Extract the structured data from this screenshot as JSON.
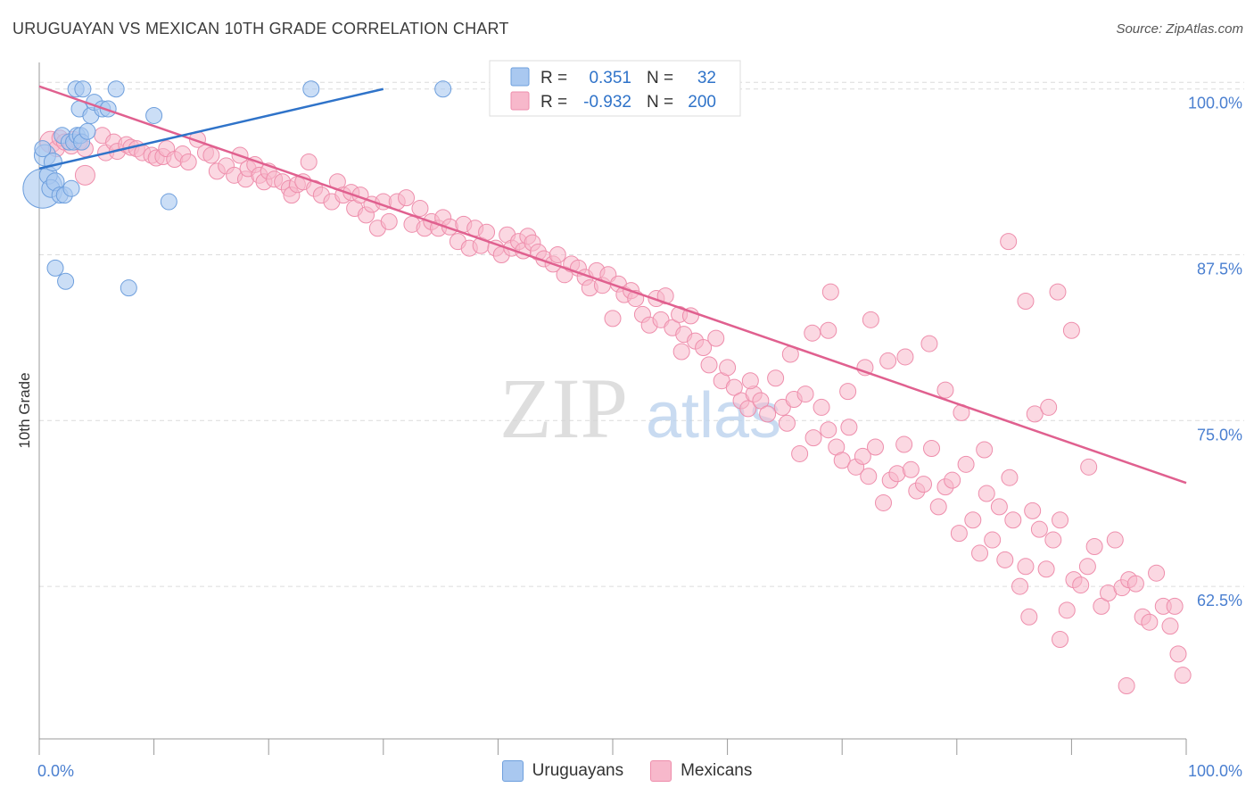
{
  "title": "URUGUAYAN VS MEXICAN 10TH GRADE CORRELATION CHART",
  "source": "Source: ZipAtlas.com",
  "watermark": {
    "zip": "ZIP",
    "atlas": "atlas"
  },
  "colors": {
    "uru_fill": "#a9c8f0",
    "uru_stroke": "#6e9fdd",
    "uru_line": "#2f73c9",
    "mex_fill": "#f7b8cb",
    "mex_stroke": "#ee8eac",
    "mex_line": "#e0608f",
    "tick_label": "#4a7fd0",
    "grid": "#dcdcdc"
  },
  "legend": {
    "rows": [
      {
        "r_label": "R =",
        "r_value": "0.351",
        "n_label": "N =",
        "n_value": "32"
      },
      {
        "r_label": "R =",
        "r_value": "-0.932",
        "n_label": "N =",
        "n_value": "200"
      }
    ]
  },
  "bottom_legend": {
    "uru": "Uruguayans",
    "mex": "Mexicans"
  },
  "chart_data": {
    "type": "scatter",
    "title": "URUGUAYAN VS MEXICAN 10TH GRADE CORRELATION CHART",
    "xlabel": "",
    "ylabel": "10th Grade",
    "xlim": [
      0,
      100
    ],
    "ylim": [
      51,
      102
    ],
    "x_tick_labels": [
      "0.0%",
      "100.0%"
    ],
    "y_ticks": [
      62.5,
      75.0,
      87.5,
      100.0
    ],
    "y_tick_labels": [
      "62.5%",
      "75.0%",
      "87.5%",
      "100.0%"
    ],
    "grid": true,
    "legend_position": "top-center",
    "series": [
      {
        "name": "Uruguayans",
        "r": 0.351,
        "n": 32,
        "trend": {
          "x": [
            0,
            30
          ],
          "y": [
            94.0,
            100.0
          ]
        },
        "points": [
          [
            0.3,
            92.5,
            22
          ],
          [
            0.5,
            95.0,
            12
          ],
          [
            0.8,
            93.5,
            10
          ],
          [
            1.0,
            92.5,
            10
          ],
          [
            1.2,
            94.5,
            10
          ],
          [
            1.4,
            93.0,
            10
          ],
          [
            1.8,
            92.0,
            9
          ],
          [
            2.0,
            96.5,
            9
          ],
          [
            2.2,
            92.0,
            9
          ],
          [
            2.6,
            96.0,
            9
          ],
          [
            2.8,
            92.5,
            9
          ],
          [
            3.0,
            96.0,
            9
          ],
          [
            3.3,
            96.5,
            9
          ],
          [
            3.2,
            100.0,
            9
          ],
          [
            3.5,
            98.5,
            9
          ],
          [
            3.6,
            96.5,
            9
          ],
          [
            3.7,
            96.0,
            9
          ],
          [
            3.8,
            100.0,
            9
          ],
          [
            4.2,
            96.8,
            9
          ],
          [
            4.5,
            98.0,
            9
          ],
          [
            4.8,
            99.0,
            9
          ],
          [
            5.5,
            98.5,
            9
          ],
          [
            6.0,
            98.5,
            9
          ],
          [
            6.7,
            100.0,
            9
          ],
          [
            1.4,
            86.5,
            9
          ],
          [
            2.3,
            85.5,
            9
          ],
          [
            7.8,
            85.0,
            9
          ],
          [
            10.0,
            98.0,
            9
          ],
          [
            11.3,
            91.5,
            9
          ],
          [
            23.7,
            100.0,
            9
          ],
          [
            35.2,
            100.0,
            9
          ],
          [
            0.3,
            95.5,
            9
          ]
        ]
      },
      {
        "name": "Mexicans",
        "r": -0.932,
        "n": 200,
        "trend": {
          "x": [
            0,
            100
          ],
          "y": [
            100.2,
            70.3
          ]
        },
        "points": [
          [
            1.0,
            96.0,
            12
          ],
          [
            1.5,
            95.5,
            9
          ],
          [
            1.8,
            96.3,
            9
          ],
          [
            2.2,
            96.0,
            9
          ],
          [
            2.8,
            95.7,
            9
          ],
          [
            3.0,
            96.2,
            9
          ],
          [
            3.5,
            96.0,
            9
          ],
          [
            4.0,
            95.5,
            9
          ],
          [
            5.5,
            96.5,
            9
          ],
          [
            5.8,
            95.2,
            9
          ],
          [
            4.0,
            93.5,
            11
          ],
          [
            6.5,
            96.0,
            9
          ],
          [
            6.8,
            95.3,
            9
          ],
          [
            7.6,
            95.8,
            9
          ],
          [
            8.0,
            95.6,
            9
          ],
          [
            8.5,
            95.5,
            9
          ],
          [
            9.0,
            95.2,
            9
          ],
          [
            9.8,
            95.0,
            9
          ],
          [
            10.2,
            94.8,
            9
          ],
          [
            10.8,
            94.9,
            9
          ],
          [
            11.1,
            95.5,
            9
          ],
          [
            11.8,
            94.7,
            9
          ],
          [
            12.5,
            95.1,
            9
          ],
          [
            13.0,
            94.5,
            9
          ],
          [
            13.8,
            96.2,
            9
          ],
          [
            14.5,
            95.2,
            9
          ],
          [
            15.0,
            95.0,
            9
          ],
          [
            15.5,
            93.8,
            9
          ],
          [
            16.3,
            94.2,
            9
          ],
          [
            17.0,
            93.5,
            9
          ],
          [
            17.5,
            95.0,
            9
          ],
          [
            18.0,
            93.2,
            9
          ],
          [
            18.2,
            94.0,
            9
          ],
          [
            18.8,
            94.3,
            9
          ],
          [
            19.2,
            93.5,
            9
          ],
          [
            19.6,
            93.0,
            9
          ],
          [
            20.0,
            93.8,
            9
          ],
          [
            20.5,
            93.2,
            9
          ],
          [
            21.2,
            93.0,
            9
          ],
          [
            21.8,
            92.5,
            9
          ],
          [
            22.0,
            92.0,
            9
          ],
          [
            22.5,
            92.8,
            9
          ],
          [
            23.0,
            93.0,
            9
          ],
          [
            23.5,
            94.5,
            9
          ],
          [
            24.0,
            92.5,
            9
          ],
          [
            24.6,
            92.0,
            9
          ],
          [
            25.5,
            91.5,
            9
          ],
          [
            26.0,
            93.0,
            9
          ],
          [
            26.5,
            92.0,
            9
          ],
          [
            27.2,
            92.2,
            9
          ],
          [
            27.5,
            91.0,
            9
          ],
          [
            28.0,
            92.0,
            9
          ],
          [
            28.5,
            90.5,
            9
          ],
          [
            29.0,
            91.3,
            9
          ],
          [
            29.5,
            89.5,
            9
          ],
          [
            30.0,
            91.5,
            9
          ],
          [
            30.5,
            90.0,
            9
          ],
          [
            31.2,
            91.5,
            9
          ],
          [
            32.0,
            91.8,
            9
          ],
          [
            32.5,
            89.8,
            9
          ],
          [
            33.2,
            91.0,
            9
          ],
          [
            33.6,
            89.5,
            9
          ],
          [
            34.2,
            90.0,
            9
          ],
          [
            34.8,
            89.5,
            9
          ],
          [
            35.2,
            90.3,
            9
          ],
          [
            35.8,
            89.6,
            9
          ],
          [
            36.5,
            88.5,
            9
          ],
          [
            37.0,
            89.8,
            9
          ],
          [
            37.5,
            88.0,
            9
          ],
          [
            38.0,
            89.5,
            9
          ],
          [
            38.5,
            88.2,
            9
          ],
          [
            39.0,
            89.2,
            9
          ],
          [
            39.8,
            88.0,
            9
          ],
          [
            40.3,
            87.5,
            9
          ],
          [
            40.8,
            89.0,
            9
          ],
          [
            41.2,
            88.0,
            9
          ],
          [
            41.8,
            88.5,
            9
          ],
          [
            42.2,
            87.8,
            9
          ],
          [
            42.6,
            88.9,
            9
          ],
          [
            43.0,
            88.4,
            9
          ],
          [
            43.5,
            87.7,
            9
          ],
          [
            44.0,
            87.2,
            9
          ],
          [
            44.8,
            86.8,
            9
          ],
          [
            45.2,
            87.5,
            9
          ],
          [
            45.8,
            86.0,
            9
          ],
          [
            46.4,
            86.8,
            9
          ],
          [
            47.0,
            86.5,
            9
          ],
          [
            47.6,
            85.8,
            9
          ],
          [
            48.0,
            85.0,
            9
          ],
          [
            48.6,
            86.3,
            9
          ],
          [
            49.1,
            85.2,
            9
          ],
          [
            49.6,
            86.0,
            9
          ],
          [
            50.0,
            82.7,
            9
          ],
          [
            50.5,
            85.3,
            9
          ],
          [
            51.0,
            84.5,
            9
          ],
          [
            51.6,
            84.8,
            9
          ],
          [
            52.0,
            84.2,
            9
          ],
          [
            52.6,
            83.0,
            9
          ],
          [
            53.2,
            82.2,
            9
          ],
          [
            53.8,
            84.2,
            9
          ],
          [
            54.2,
            82.6,
            9
          ],
          [
            54.6,
            84.4,
            9
          ],
          [
            55.2,
            82.0,
            9
          ],
          [
            55.8,
            83.0,
            9
          ],
          [
            56.2,
            81.5,
            9
          ],
          [
            56.8,
            82.9,
            9
          ],
          [
            57.2,
            81.0,
            9
          ],
          [
            57.9,
            80.5,
            9
          ],
          [
            58.4,
            79.2,
            9
          ],
          [
            59.0,
            81.2,
            9
          ],
          [
            59.5,
            78.0,
            9
          ],
          [
            60.0,
            79.0,
            9
          ],
          [
            60.6,
            77.5,
            9
          ],
          [
            61.2,
            76.5,
            9
          ],
          [
            61.8,
            75.9,
            9
          ],
          [
            62.3,
            77.0,
            9
          ],
          [
            62.9,
            76.5,
            9
          ],
          [
            63.5,
            75.5,
            9
          ],
          [
            64.2,
            78.2,
            9
          ],
          [
            64.8,
            76.0,
            9
          ],
          [
            65.2,
            74.8,
            9
          ],
          [
            65.8,
            76.6,
            9
          ],
          [
            66.3,
            72.5,
            9
          ],
          [
            66.8,
            77.0,
            9
          ],
          [
            67.5,
            73.7,
            9
          ],
          [
            68.2,
            76.0,
            9
          ],
          [
            68.8,
            74.3,
            9
          ],
          [
            69.5,
            73.0,
            9
          ],
          [
            70.0,
            72.0,
            9
          ],
          [
            70.6,
            74.5,
            9
          ],
          [
            71.2,
            71.5,
            9
          ],
          [
            71.8,
            72.3,
            9
          ],
          [
            72.3,
            70.8,
            9
          ],
          [
            72.9,
            73.0,
            9
          ],
          [
            73.6,
            68.8,
            9
          ],
          [
            74.2,
            70.5,
            9
          ],
          [
            74.8,
            71.0,
            9
          ],
          [
            75.4,
            73.2,
            9
          ],
          [
            76.0,
            71.3,
            9
          ],
          [
            76.5,
            69.7,
            9
          ],
          [
            77.1,
            70.2,
            9
          ],
          [
            77.8,
            72.9,
            9
          ],
          [
            78.4,
            68.5,
            9
          ],
          [
            79.0,
            70.0,
            9
          ],
          [
            79.6,
            70.5,
            9
          ],
          [
            80.2,
            66.5,
            9
          ],
          [
            80.8,
            71.7,
            9
          ],
          [
            81.4,
            67.5,
            9
          ],
          [
            82.0,
            65.0,
            9
          ],
          [
            82.6,
            69.5,
            9
          ],
          [
            83.1,
            66.0,
            9
          ],
          [
            83.7,
            68.5,
            9
          ],
          [
            84.2,
            64.5,
            9
          ],
          [
            84.9,
            67.5,
            9
          ],
          [
            85.5,
            62.5,
            9
          ],
          [
            86.0,
            64.0,
            9
          ],
          [
            86.6,
            68.2,
            9
          ],
          [
            87.2,
            66.8,
            9
          ],
          [
            87.8,
            63.8,
            9
          ],
          [
            88.4,
            66.0,
            9
          ],
          [
            89.0,
            67.5,
            9
          ],
          [
            89.6,
            60.7,
            9
          ],
          [
            90.2,
            63.0,
            9
          ],
          [
            90.8,
            62.6,
            9
          ],
          [
            91.4,
            64.0,
            9
          ],
          [
            92.0,
            65.5,
            9
          ],
          [
            92.6,
            61.0,
            9
          ],
          [
            93.2,
            62.0,
            9
          ],
          [
            93.8,
            66.0,
            9
          ],
          [
            94.4,
            62.4,
            9
          ],
          [
            95.0,
            63.0,
            9
          ],
          [
            95.6,
            62.7,
            9
          ],
          [
            96.2,
            60.2,
            9
          ],
          [
            96.8,
            59.8,
            9
          ],
          [
            97.4,
            63.5,
            9
          ],
          [
            98.0,
            61.0,
            9
          ],
          [
            98.6,
            59.5,
            9
          ],
          [
            99.3,
            57.4,
            9
          ],
          [
            99.7,
            55.8,
            9
          ],
          [
            56.0,
            80.2,
            9
          ],
          [
            62.0,
            78.0,
            9
          ],
          [
            65.5,
            80.0,
            9
          ],
          [
            67.4,
            81.6,
            9
          ],
          [
            68.8,
            81.8,
            9
          ],
          [
            70.5,
            77.2,
            9
          ],
          [
            72.5,
            82.6,
            9
          ],
          [
            74.0,
            79.5,
            9
          ],
          [
            75.5,
            79.8,
            9
          ],
          [
            77.6,
            80.8,
            9
          ],
          [
            79.0,
            77.3,
            9
          ],
          [
            80.4,
            75.6,
            9
          ],
          [
            82.4,
            72.8,
            9
          ],
          [
            84.6,
            70.7,
            9
          ],
          [
            86.8,
            75.5,
            9
          ],
          [
            88.0,
            76.0,
            9
          ],
          [
            69.0,
            84.7,
            9
          ],
          [
            72.0,
            79.0,
            9
          ],
          [
            84.5,
            88.5,
            9
          ],
          [
            86.0,
            84.0,
            9
          ],
          [
            88.8,
            84.7,
            9
          ],
          [
            90.0,
            81.8,
            9
          ],
          [
            91.5,
            71.5,
            9
          ],
          [
            86.3,
            60.2,
            9
          ],
          [
            99.0,
            61.0,
            9
          ],
          [
            89.0,
            58.5,
            9
          ],
          [
            94.8,
            55.0,
            9
          ]
        ]
      }
    ]
  }
}
